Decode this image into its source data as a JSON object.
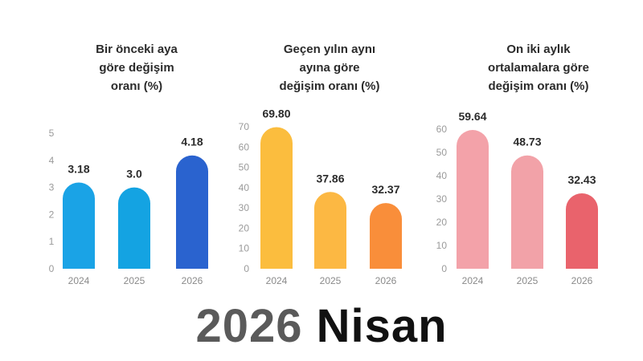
{
  "chart_data": [
    {
      "type": "bar",
      "title": "Bir önceki aya\ngöre değişim\noranı (%)",
      "categories": [
        "2024",
        "2025",
        "2026"
      ],
      "values": [
        3.18,
        3.0,
        4.18
      ],
      "value_labels": [
        "3.18",
        "3.0",
        "4.18"
      ],
      "ylim": [
        0,
        5
      ],
      "yticks": [
        0,
        1,
        2,
        3,
        4,
        5
      ],
      "colors": [
        "#1aa3e6",
        "#14a3e2",
        "#2a63cf"
      ]
    },
    {
      "type": "bar",
      "title": "Geçen yılın aynı\nayına göre\ndeğişim oranı (%)",
      "categories": [
        "2024",
        "2025",
        "2026"
      ],
      "values": [
        69.8,
        37.86,
        32.37
      ],
      "value_labels": [
        "69.80",
        "37.86",
        "32.37"
      ],
      "ylim": [
        0,
        70
      ],
      "yticks": [
        0,
        10,
        20,
        30,
        40,
        50,
        60,
        70
      ],
      "colors": [
        "#fbbd3e",
        "#fcb843",
        "#f98e3a"
      ]
    },
    {
      "type": "bar",
      "title": "On iki aylık\nortalamalara göre\ndeğişim oranı (%)",
      "categories": [
        "2024",
        "2025",
        "2026"
      ],
      "values": [
        59.64,
        48.73,
        32.43
      ],
      "value_labels": [
        "59.64",
        "48.73",
        "32.43"
      ],
      "ylim": [
        0,
        60
      ],
      "yticks": [
        0,
        10,
        20,
        30,
        40,
        50,
        60
      ],
      "colors": [
        "#f3a2a9",
        "#f2a2a8",
        "#e9636c"
      ]
    }
  ],
  "footer": {
    "year": "2026",
    "month": "Nisan"
  }
}
